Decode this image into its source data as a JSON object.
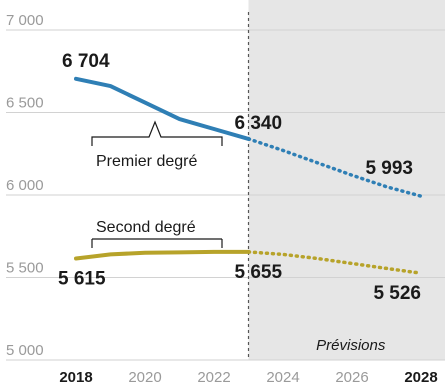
{
  "chart_data": {
    "type": "line",
    "ylim": [
      5000,
      7000
    ],
    "yticks": [
      "7 000",
      "6 500",
      "6 000",
      "5 500",
      "5 000"
    ],
    "ytick_values": [
      7000,
      6500,
      6000,
      5500,
      5000
    ],
    "xlim": [
      2018,
      2028
    ],
    "xticks": [
      "2018",
      "2020",
      "2022",
      "2024",
      "2026",
      "2028"
    ],
    "xtick_values": [
      2018,
      2020,
      2022,
      2024,
      2026,
      2028
    ],
    "xticks_bold": [
      "2018",
      "2028"
    ],
    "forecast_start": 2023,
    "forecast_label": "Prévisions",
    "grid": "horizontal",
    "colors": {
      "premier": "#2f7fb5",
      "second": "#b7a32a",
      "forecast_shade": "#e6e6e6",
      "grid": "#d2d2d2"
    },
    "series": [
      {
        "name": "Premier degré",
        "color_key": "premier",
        "x": [
          2018,
          2019,
          2020,
          2021,
          2022,
          2023,
          2024,
          2025,
          2026,
          2027,
          2028
        ],
        "values": [
          6704,
          6660,
          6560,
          6460,
          6400,
          6340,
          6270,
          6195,
          6120,
          6050,
          5993
        ],
        "labels": [
          {
            "x": 2018,
            "value": 6704,
            "text": "6 704"
          },
          {
            "x": 2023,
            "value": 6340,
            "text": "6 340"
          },
          {
            "x": 2028,
            "value": 5993,
            "text": "5 993"
          }
        ]
      },
      {
        "name": "Second degré",
        "color_key": "second",
        "x": [
          2018,
          2019,
          2020,
          2021,
          2022,
          2023,
          2024,
          2025,
          2026,
          2027,
          2028
        ],
        "values": [
          5615,
          5640,
          5650,
          5652,
          5655,
          5655,
          5640,
          5615,
          5585,
          5555,
          5526
        ],
        "labels": [
          {
            "x": 2018,
            "value": 5615,
            "text": "5 615"
          },
          {
            "x": 2023,
            "value": 5655,
            "text": "5 655"
          },
          {
            "x": 2028,
            "value": 5526,
            "text": "5 526"
          }
        ]
      }
    ]
  }
}
